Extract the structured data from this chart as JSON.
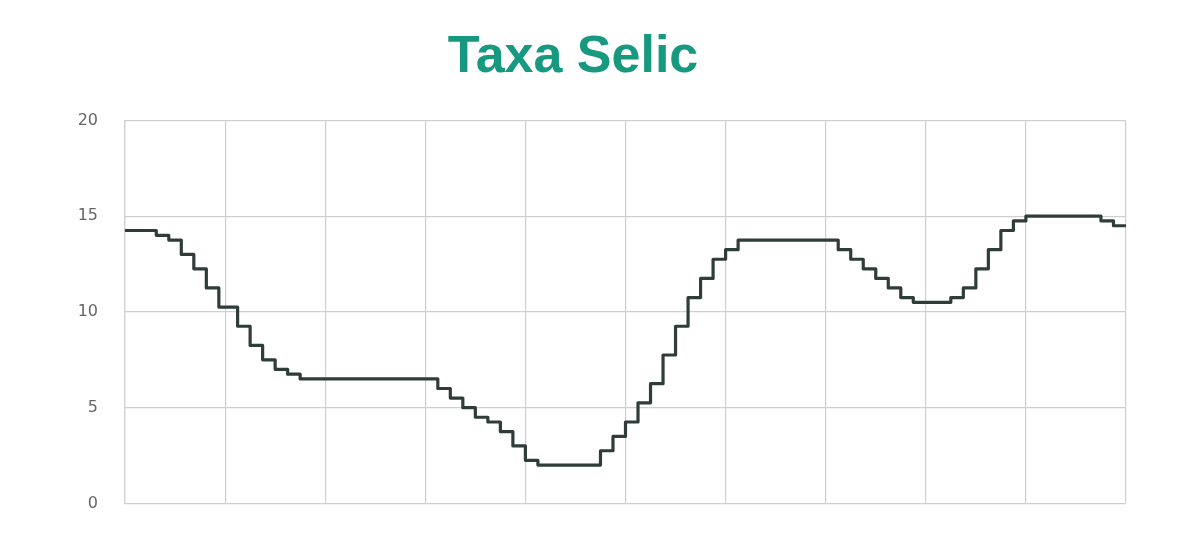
{
  "chart_data": {
    "type": "step",
    "title": "Taxa Selic",
    "categories": [
      null,
      null,
      null,
      null,
      null,
      null,
      null,
      null,
      null,
      null,
      null,
      null,
      null,
      null,
      null,
      null,
      null,
      null,
      null,
      null,
      null,
      null,
      null,
      null,
      null,
      null,
      null,
      null,
      null,
      null,
      null,
      null,
      null,
      null,
      null,
      null,
      null,
      null,
      null,
      null,
      null,
      null,
      null,
      null,
      null,
      null,
      null,
      null,
      null,
      null,
      null,
      null,
      null,
      null,
      null,
      null,
      null,
      null,
      null,
      null,
      null,
      null,
      null,
      null,
      null,
      null,
      null,
      null,
      null,
      null,
      null,
      null,
      null,
      null,
      null,
      null,
      null,
      null,
      null,
      null,
      null,
      null,
      null,
      null,
      null,
      null,
      null,
      null,
      null,
      null,
      null,
      null,
      null,
      null,
      null,
      null,
      null,
      null,
      null,
      null,
      null,
      null,
      null,
      null,
      null,
      null,
      null,
      null,
      null,
      null,
      null,
      null,
      null,
      null,
      null,
      null,
      null,
      null,
      null,
      null,
      null,
      null,
      null,
      null,
      null,
      null,
      null,
      null,
      null,
      null,
      null,
      null,
      null,
      null,
      null,
      null,
      null,
      null,
      null,
      null,
      null,
      null,
      null,
      null,
      null,
      null,
      null,
      null,
      null,
      null,
      null,
      null,
      null,
      null,
      null,
      null,
      null,
      null,
      null,
      null,
      null
    ],
    "values": [
      14.25,
      14.25,
      14.25,
      14.25,
      14.25,
      14,
      14,
      13.75,
      13.75,
      13,
      13,
      12.25,
      12.25,
      11.25,
      11.25,
      10.25,
      10.25,
      10.25,
      9.25,
      9.25,
      8.25,
      8.25,
      7.5,
      7.5,
      7,
      7,
      6.75,
      6.75,
      6.5,
      6.5,
      6.5,
      6.5,
      6.5,
      6.5,
      6.5,
      6.5,
      6.5,
      6.5,
      6.5,
      6.5,
      6.5,
      6.5,
      6.5,
      6.5,
      6.5,
      6.5,
      6.5,
      6.5,
      6.5,
      6.5,
      6,
      6,
      5.5,
      5.5,
      5,
      5,
      4.5,
      4.5,
      4.25,
      4.25,
      3.75,
      3.75,
      3,
      3,
      2.25,
      2.25,
      2,
      2,
      2,
      2,
      2,
      2,
      2,
      2,
      2,
      2,
      2.75,
      2.75,
      3.5,
      3.5,
      4.25,
      4.25,
      5.25,
      5.25,
      6.25,
      6.25,
      7.75,
      7.75,
      9.25,
      9.25,
      10.75,
      10.75,
      11.75,
      11.75,
      12.75,
      12.75,
      13.25,
      13.25,
      13.75,
      13.75,
      13.75,
      13.75,
      13.75,
      13.75,
      13.75,
      13.75,
      13.75,
      13.75,
      13.75,
      13.75,
      13.75,
      13.75,
      13.75,
      13.75,
      13.25,
      13.25,
      12.75,
      12.75,
      12.25,
      12.25,
      11.75,
      11.75,
      11.25,
      11.25,
      10.75,
      10.75,
      10.5,
      10.5,
      10.5,
      10.5,
      10.5,
      10.5,
      10.75,
      10.75,
      11.25,
      11.25,
      12.25,
      12.25,
      13.25,
      13.25,
      14.25,
      14.25,
      14.75,
      14.75,
      15,
      15,
      15,
      15,
      15,
      15,
      15,
      15,
      15,
      15,
      15,
      15,
      14.75,
      14.75,
      14.5,
      14.5,
      14.5
    ],
    "color": "#2f3d3a",
    "ylim": [
      0,
      20
    ],
    "yticks": [
      0,
      5,
      10,
      15,
      20
    ],
    "grid": true,
    "legend": false
  }
}
